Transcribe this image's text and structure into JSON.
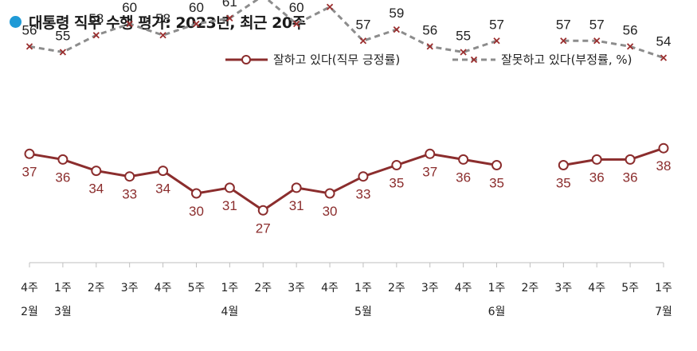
{
  "title": "대통령 직무 수행 평가: 2023년, 최근 20주",
  "colors": {
    "title_dot": "#1f9ad6",
    "positive": "#8b2d2d",
    "negative": "#8c8c8c",
    "negative_marker": "#9b2f2f",
    "axis": "#bfbfbf"
  },
  "chart_data": {
    "type": "line",
    "title": "대통령 직무 수행 평가: 2023년, 최근 20주",
    "x": [
      "4주",
      "1주",
      "2주",
      "3주",
      "4주",
      "5주",
      "1주",
      "2주",
      "3주",
      "4주",
      "1주",
      "2주",
      "3주",
      "4주",
      "1주",
      "2주",
      "3주",
      "4주",
      "5주",
      "1주"
    ],
    "months": [
      {
        "index": 0,
        "label": "2월"
      },
      {
        "index": 1,
        "label": "3월"
      },
      {
        "index": 6,
        "label": "4월"
      },
      {
        "index": 10,
        "label": "5월"
      },
      {
        "index": 14,
        "label": "6월"
      },
      {
        "index": 19,
        "label": "7월"
      }
    ],
    "ylim": [
      20,
      70
    ],
    "grid": false,
    "legend_position": "top-right",
    "series": [
      {
        "name": "잘하고 있다(직무 긍정률)",
        "style": "solid-circle",
        "values": [
          37,
          36,
          34,
          33,
          34,
          30,
          31,
          27,
          31,
          30,
          33,
          35,
          37,
          36,
          35,
          null,
          35,
          36,
          36,
          38
        ]
      },
      {
        "name": "잘못하고 있다(부정률, %)",
        "style": "dashed-x",
        "values": [
          56,
          55,
          58,
          60,
          58,
          60,
          61,
          65,
          60,
          63,
          57,
          59,
          56,
          55,
          57,
          null,
          57,
          57,
          56,
          54
        ]
      }
    ]
  }
}
